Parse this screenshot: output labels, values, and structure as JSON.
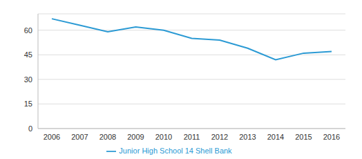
{
  "chart_data": {
    "type": "line",
    "categories": [
      "2006",
      "2007",
      "2008",
      "2009",
      "2010",
      "2011",
      "2012",
      "2013",
      "2014",
      "2015",
      "2016"
    ],
    "series": [
      {
        "name": "Junior High School 14 Shell Bank",
        "color": "#2b9ad4",
        "values": [
          67,
          63,
          59,
          62,
          60,
          55,
          54,
          49,
          42,
          46,
          47
        ]
      }
    ],
    "ylim": [
      0,
      70
    ],
    "yticks": [
      0,
      15,
      30,
      45,
      60
    ],
    "grid": true,
    "legend": "bottom"
  }
}
